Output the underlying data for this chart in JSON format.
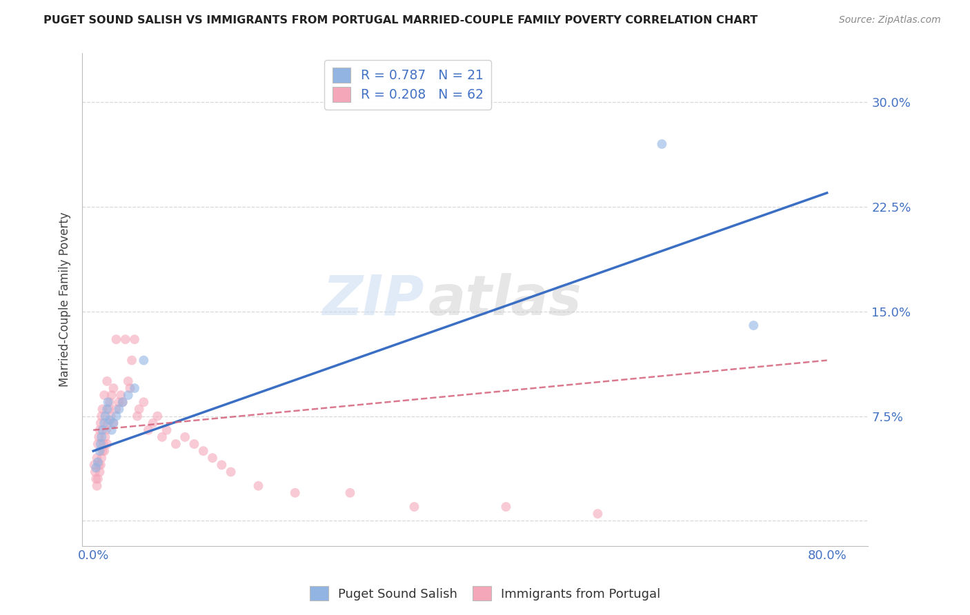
{
  "title": "PUGET SOUND SALISH VS IMMIGRANTS FROM PORTUGAL MARRIED-COUPLE FAMILY POVERTY CORRELATION CHART",
  "source": "Source: ZipAtlas.com",
  "ylabel": "Married-Couple Family Poverty",
  "x_tick_positions": [
    0.0,
    0.2,
    0.4,
    0.6,
    0.8
  ],
  "x_tick_labels": [
    "0.0%",
    "",
    "",
    "",
    "80.0%"
  ],
  "y_tick_positions": [
    0.0,
    0.075,
    0.15,
    0.225,
    0.3
  ],
  "y_tick_labels": [
    "",
    "7.5%",
    "15.0%",
    "22.5%",
    "30.0%"
  ],
  "xlim": [
    -0.012,
    0.845
  ],
  "ylim": [
    -0.018,
    0.335
  ],
  "series1_label": "Puget Sound Salish",
  "series1_R": "0.787",
  "series1_N": "21",
  "series1_color": "#92b4e3",
  "series1_line_color": "#3a6fc4",
  "series2_label": "Immigrants from Portugal",
  "series2_R": "0.208",
  "series2_N": "62",
  "series2_color": "#f4a7b9",
  "series2_line_color": "#d4607a",
  "watermark_zip": "ZIP",
  "watermark_atlas": "atlas",
  "background_color": "#ffffff",
  "grid_color": "#d8d8d8",
  "tick_label_color": "#4472c4",
  "legend_edge_color": "#cccccc",
  "series1_x": [
    0.003,
    0.005,
    0.007,
    0.008,
    0.009,
    0.01,
    0.012,
    0.013,
    0.015,
    0.016,
    0.018,
    0.02,
    0.022,
    0.025,
    0.028,
    0.032,
    0.038,
    0.045,
    0.055,
    0.62,
    0.72
  ],
  "series1_y": [
    0.038,
    0.042,
    0.05,
    0.055,
    0.06,
    0.065,
    0.07,
    0.075,
    0.08,
    0.085,
    0.072,
    0.065,
    0.07,
    0.075,
    0.08,
    0.085,
    0.09,
    0.095,
    0.115,
    0.27,
    0.14
  ],
  "series2_x": [
    0.001,
    0.002,
    0.003,
    0.004,
    0.004,
    0.005,
    0.005,
    0.006,
    0.006,
    0.007,
    0.007,
    0.008,
    0.008,
    0.009,
    0.009,
    0.01,
    0.01,
    0.011,
    0.012,
    0.012,
    0.013,
    0.014,
    0.015,
    0.015,
    0.016,
    0.017,
    0.018,
    0.019,
    0.02,
    0.022,
    0.022,
    0.025,
    0.025,
    0.028,
    0.03,
    0.032,
    0.035,
    0.038,
    0.04,
    0.042,
    0.045,
    0.048,
    0.05,
    0.055,
    0.06,
    0.065,
    0.07,
    0.075,
    0.08,
    0.09,
    0.1,
    0.11,
    0.12,
    0.13,
    0.14,
    0.15,
    0.18,
    0.22,
    0.28,
    0.35,
    0.45,
    0.55
  ],
  "series2_y": [
    0.04,
    0.035,
    0.03,
    0.025,
    0.045,
    0.03,
    0.055,
    0.04,
    0.06,
    0.035,
    0.065,
    0.04,
    0.07,
    0.045,
    0.075,
    0.05,
    0.08,
    0.055,
    0.05,
    0.09,
    0.06,
    0.065,
    0.055,
    0.1,
    0.07,
    0.08,
    0.085,
    0.075,
    0.09,
    0.095,
    0.07,
    0.08,
    0.13,
    0.085,
    0.09,
    0.085,
    0.13,
    0.1,
    0.095,
    0.115,
    0.13,
    0.075,
    0.08,
    0.085,
    0.065,
    0.07,
    0.075,
    0.06,
    0.065,
    0.055,
    0.06,
    0.055,
    0.05,
    0.045,
    0.04,
    0.035,
    0.025,
    0.02,
    0.02,
    0.01,
    0.01,
    0.005
  ],
  "series1_line_x": [
    0.0,
    0.8
  ],
  "series1_line_y": [
    0.05,
    0.235
  ],
  "series2_line_x": [
    0.0,
    0.8
  ],
  "series2_line_y": [
    0.065,
    0.115
  ]
}
